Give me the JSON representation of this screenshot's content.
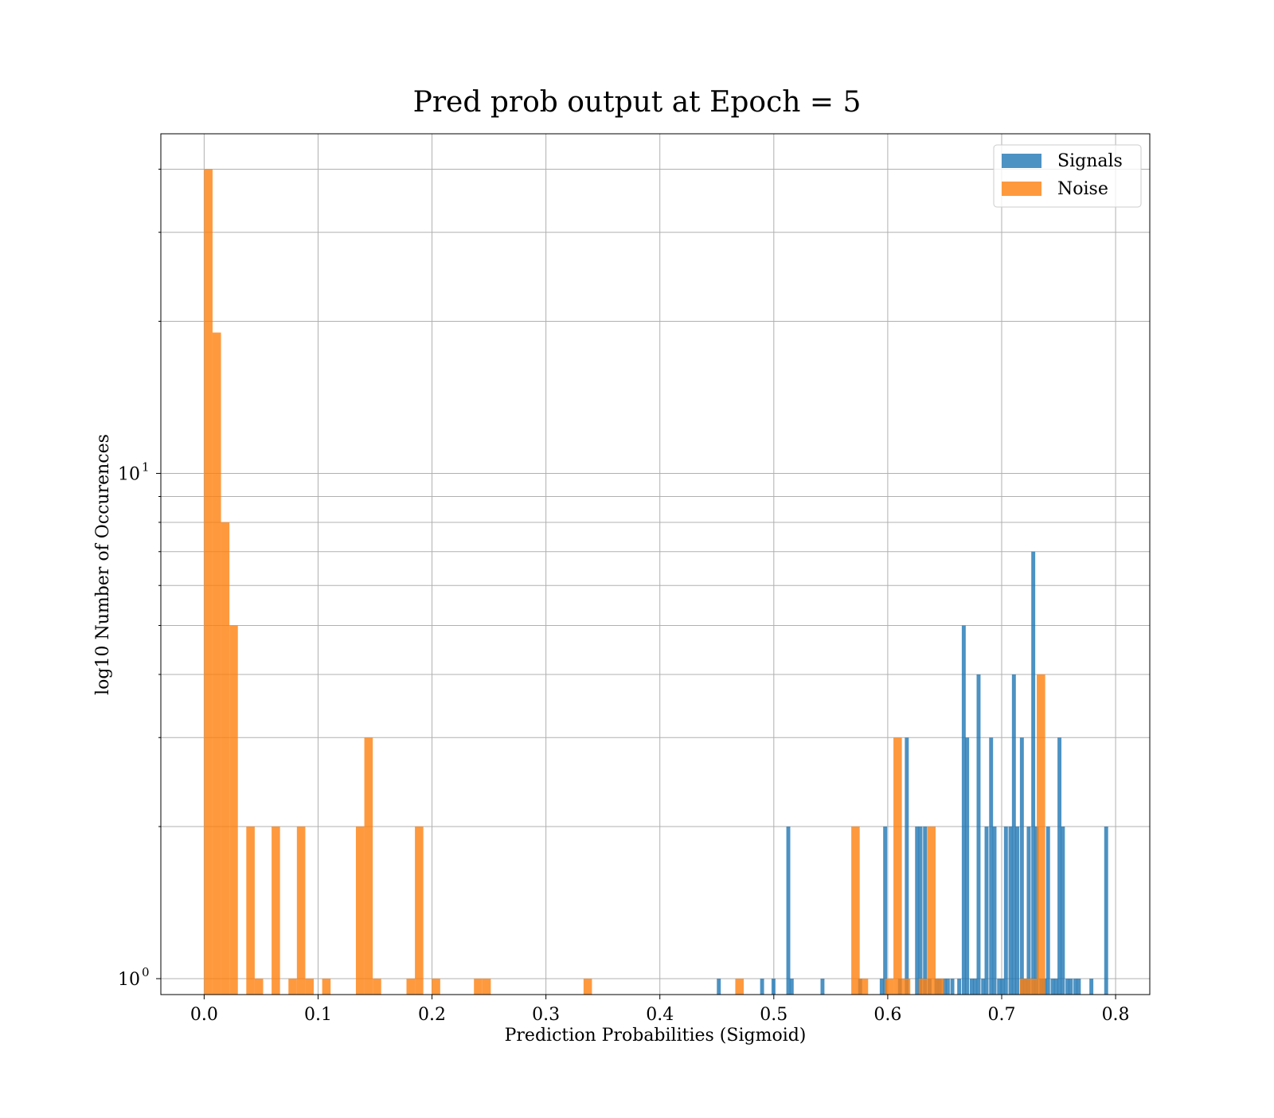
{
  "chart_data": {
    "type": "bar",
    "title": "Pred prob output at Epoch = 5",
    "xlabel": "Prediction Probabilities (Sigmoid)",
    "ylabel": "log10 Number of Occurences",
    "xlim": [
      -0.038,
      0.83
    ],
    "ylim": [
      0.93,
      47
    ],
    "yscale": "log",
    "grid": true,
    "legend_position": "top-right",
    "x_ticks": [
      0.0,
      0.1,
      0.2,
      0.3,
      0.4,
      0.5,
      0.6,
      0.7,
      0.8
    ],
    "x_tick_labels": [
      "0.0",
      "0.1",
      "0.2",
      "0.3",
      "0.4",
      "0.5",
      "0.6",
      "0.7",
      "0.8"
    ],
    "y_major_ticks": [
      {
        "value": 1,
        "base": "10",
        "exp": "0"
      },
      {
        "value": 10,
        "base": "10",
        "exp": "1"
      }
    ],
    "y_minor_ticks": [
      0.9,
      2,
      3,
      4,
      5,
      6,
      7,
      8,
      9,
      20,
      30,
      40
    ],
    "series": [
      {
        "name": "Signals",
        "color": "#1f77b4",
        "opacity": 0.8,
        "bin_width": 0.00345,
        "bins": [
          [
            0.45,
            1
          ],
          [
            0.488,
            1
          ],
          [
            0.498,
            1
          ],
          [
            0.511,
            2
          ],
          [
            0.514,
            1
          ],
          [
            0.541,
            1
          ],
          [
            0.574,
            1
          ],
          [
            0.593,
            1
          ],
          [
            0.596,
            2
          ],
          [
            0.609,
            1
          ],
          [
            0.615,
            3
          ],
          [
            0.624,
            2
          ],
          [
            0.627,
            2
          ],
          [
            0.631,
            2
          ],
          [
            0.635,
            1
          ],
          [
            0.641,
            1
          ],
          [
            0.644,
            1
          ],
          [
            0.648,
            1
          ],
          [
            0.651,
            1
          ],
          [
            0.655,
            1
          ],
          [
            0.661,
            1
          ],
          [
            0.665,
            5
          ],
          [
            0.668,
            3
          ],
          [
            0.672,
            1
          ],
          [
            0.675,
            1
          ],
          [
            0.678,
            4
          ],
          [
            0.682,
            1
          ],
          [
            0.685,
            2
          ],
          [
            0.689,
            3
          ],
          [
            0.692,
            2
          ],
          [
            0.696,
            1
          ],
          [
            0.699,
            1
          ],
          [
            0.702,
            2
          ],
          [
            0.706,
            2
          ],
          [
            0.709,
            4
          ],
          [
            0.712,
            2
          ],
          [
            0.716,
            3
          ],
          [
            0.719,
            1
          ],
          [
            0.722,
            2
          ],
          [
            0.726,
            7
          ],
          [
            0.729,
            2
          ],
          [
            0.733,
            1
          ],
          [
            0.736,
            1
          ],
          [
            0.739,
            2
          ],
          [
            0.743,
            1
          ],
          [
            0.746,
            1
          ],
          [
            0.749,
            3
          ],
          [
            0.752,
            2
          ],
          [
            0.756,
            1
          ],
          [
            0.759,
            1
          ],
          [
            0.763,
            1
          ],
          [
            0.766,
            1
          ],
          [
            0.777,
            1
          ],
          [
            0.79,
            2
          ]
        ]
      },
      {
        "name": "Noise",
        "color": "#ff7f0e",
        "opacity": 0.8,
        "bin_width": 0.0074,
        "bins": [
          [
            0.0,
            40
          ],
          [
            0.0074,
            19
          ],
          [
            0.0148,
            8
          ],
          [
            0.0222,
            5
          ],
          [
            0.037,
            2
          ],
          [
            0.0444,
            1
          ],
          [
            0.0592,
            2
          ],
          [
            0.074,
            1
          ],
          [
            0.0814,
            2
          ],
          [
            0.0888,
            1
          ],
          [
            0.1036,
            1
          ],
          [
            0.1332,
            2
          ],
          [
            0.1406,
            3
          ],
          [
            0.148,
            1
          ],
          [
            0.1776,
            1
          ],
          [
            0.185,
            2
          ],
          [
            0.1998,
            1
          ],
          [
            0.2368,
            1
          ],
          [
            0.2442,
            1
          ],
          [
            0.333,
            1
          ],
          [
            0.4662,
            1
          ],
          [
            0.568,
            2
          ],
          [
            0.5754,
            1
          ],
          [
            0.5976,
            1
          ],
          [
            0.605,
            3
          ],
          [
            0.6124,
            1
          ],
          [
            0.6272,
            1
          ],
          [
            0.6346,
            2
          ],
          [
            0.642,
            1
          ],
          [
            0.716,
            1
          ],
          [
            0.7234,
            1
          ],
          [
            0.7308,
            4
          ]
        ]
      }
    ]
  }
}
